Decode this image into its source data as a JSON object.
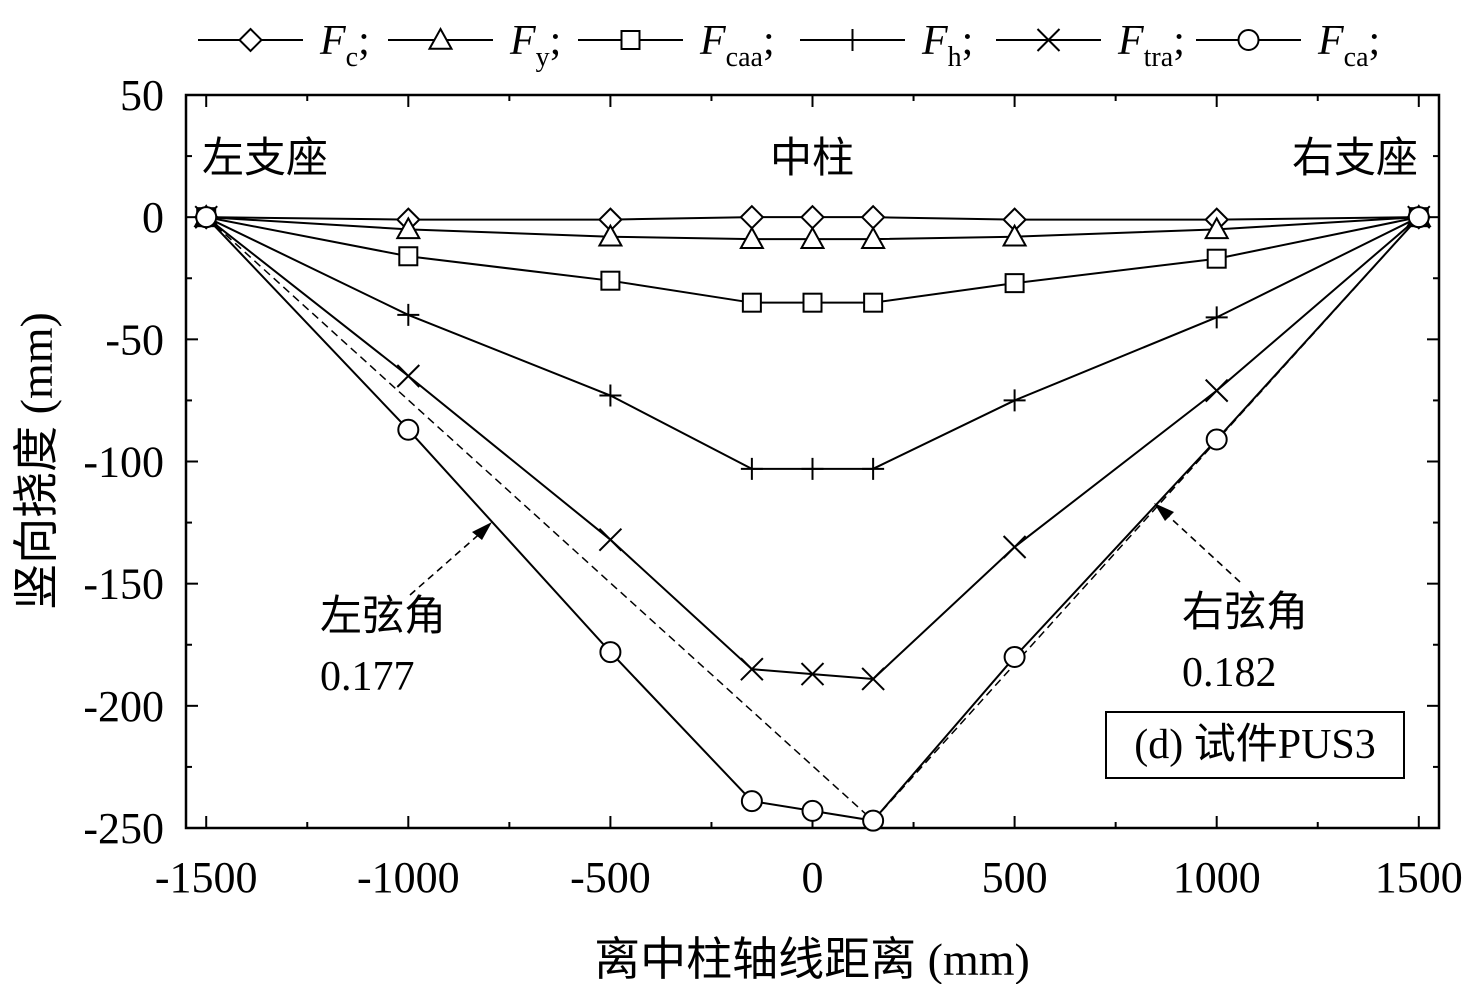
{
  "chart_data": {
    "type": "line",
    "xlabel": "离中柱轴线距离 (mm)",
    "ylabel": "竖向挠度 (mm)",
    "xlim": [
      -1550,
      1550
    ],
    "ylim": [
      -250,
      50
    ],
    "xticks": [
      -1500,
      -1000,
      -500,
      0,
      500,
      1000,
      1500
    ],
    "yticks": [
      50,
      0,
      -50,
      -100,
      -150,
      -200,
      -250
    ],
    "grid": false,
    "legend_position": "top, outside plot",
    "x": [
      -1500,
      -1000,
      -500,
      -150,
      0,
      150,
      500,
      1000,
      1500
    ],
    "series": [
      {
        "name": "F",
        "sub": "c",
        "marker": "diamond",
        "values": [
          0,
          -1,
          -1,
          0,
          0,
          0,
          -1,
          -1,
          0
        ]
      },
      {
        "name": "F",
        "sub": "y",
        "marker": "triangle",
        "values": [
          0,
          -5,
          -8,
          -9,
          -9,
          -9,
          -8,
          -5,
          0
        ]
      },
      {
        "name": "F",
        "sub": "caa",
        "marker": "square",
        "values": [
          0,
          -16,
          -26,
          -35,
          -35,
          -35,
          -27,
          -17,
          0
        ]
      },
      {
        "name": "F",
        "sub": "h",
        "marker": "plus",
        "values": [
          0,
          -40,
          -73,
          -103,
          -103,
          -103,
          -75,
          -41,
          0
        ]
      },
      {
        "name": "F",
        "sub": "tra",
        "marker": "cross",
        "values": [
          0,
          -65,
          -132,
          -185,
          -187,
          -189,
          -135,
          -71,
          0
        ]
      },
      {
        "name": "F",
        "sub": "ca",
        "marker": "circle",
        "values": [
          0,
          -87,
          -178,
          -239,
          -243,
          -247,
          -180,
          -91,
          0
        ]
      }
    ],
    "annotations": {
      "left_support": "左支座",
      "center_column": "中柱",
      "right_support": "右支座",
      "left_chord_label": "左弦角",
      "left_chord_value": "0.177",
      "right_chord_label": "右弦角",
      "right_chord_value": "0.182",
      "specimen_label": "(d) 试件PUS3"
    }
  }
}
